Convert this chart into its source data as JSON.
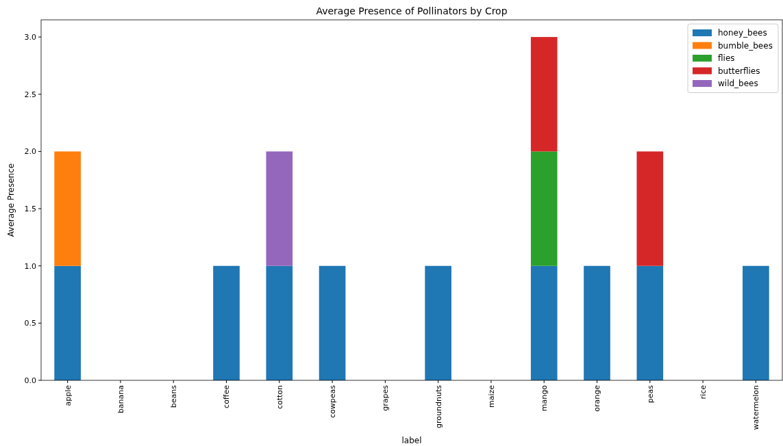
{
  "chart_data": {
    "type": "bar",
    "title": "Average Presence of Pollinators by Crop",
    "xlabel": "label",
    "ylabel": "Average Presence",
    "categories": [
      "apple",
      "banana",
      "beans",
      "coffee",
      "cotton",
      "cowpeas",
      "grapes",
      "groundnuts",
      "maize",
      "mango",
      "orange",
      "peas",
      "rice",
      "watermelon"
    ],
    "stacked": true,
    "series": [
      {
        "name": "honey_bees",
        "color": "#1f77b4",
        "values": [
          1,
          0,
          0,
          1,
          1,
          1,
          0,
          1,
          0,
          1,
          1,
          1,
          0,
          1
        ]
      },
      {
        "name": "bumble_bees",
        "color": "#ff7f0e",
        "values": [
          1,
          0,
          0,
          0,
          0,
          0,
          0,
          0,
          0,
          0,
          0,
          0,
          0,
          0
        ]
      },
      {
        "name": "flies",
        "color": "#2ca02c",
        "values": [
          0,
          0,
          0,
          0,
          0,
          0,
          0,
          0,
          0,
          1,
          0,
          0,
          0,
          0
        ]
      },
      {
        "name": "butterflies",
        "color": "#d62728",
        "values": [
          0,
          0,
          0,
          0,
          0,
          0,
          0,
          0,
          0,
          1,
          0,
          1,
          0,
          0
        ]
      },
      {
        "name": "wild_bees",
        "color": "#9467bd",
        "values": [
          0,
          0,
          0,
          0,
          1,
          0,
          0,
          0,
          0,
          0,
          0,
          0,
          0,
          0
        ]
      }
    ],
    "ylim": [
      0,
      3.15
    ],
    "yticks": [
      {
        "value": 0,
        "label": "0.0"
      },
      {
        "value": 0.5,
        "label": "0.5"
      },
      {
        "value": 1,
        "label": "1.0"
      },
      {
        "value": 1.5,
        "label": "1.5"
      },
      {
        "value": 2,
        "label": "2.0"
      },
      {
        "value": 2.5,
        "label": "2.5"
      },
      {
        "value": 3,
        "label": "3.0"
      }
    ],
    "grid": false,
    "legend": "top right"
  }
}
